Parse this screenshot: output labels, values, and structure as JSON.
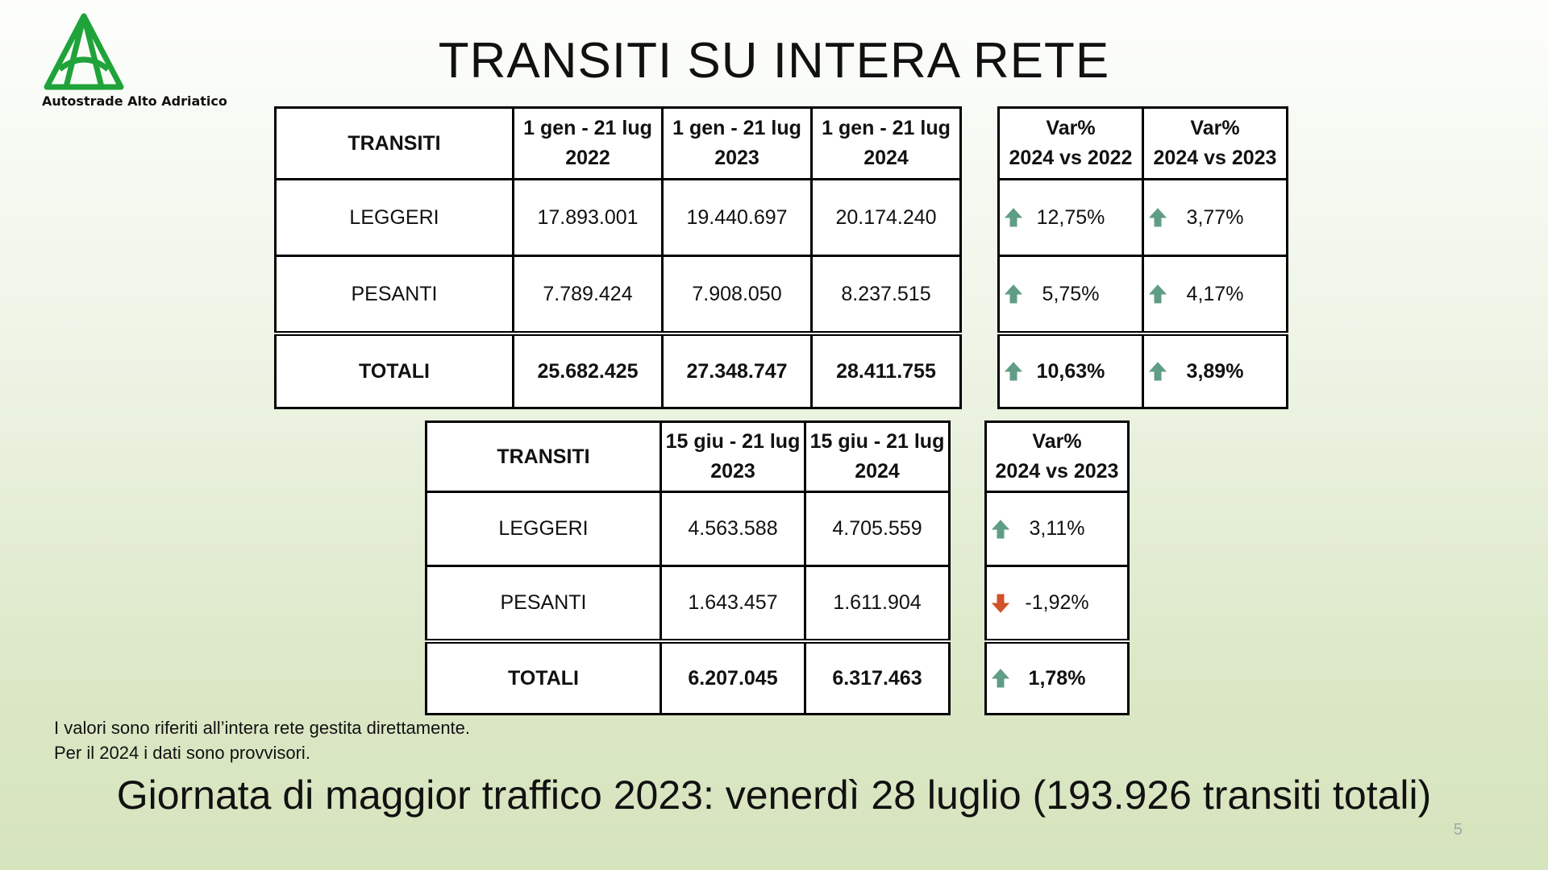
{
  "logo": {
    "text": "Autostrade Alto Adriatico",
    "color": "#1fa33a"
  },
  "title": "TRANSITI SU INTERA RETE",
  "colors": {
    "up_arrow": "#5f9e85",
    "down_arrow": "#d2522b"
  },
  "table1": {
    "headers": [
      "TRANSITI",
      "1 gen - 21 lug",
      "2022",
      "1 gen - 21 lug",
      "2023",
      "1 gen - 21 lug",
      "2024",
      "Var%",
      "2024 vs 2022",
      "Var%",
      "2024 vs 2023"
    ],
    "rows": [
      {
        "label": "LEGGERI",
        "v1": "17.893.001",
        "v2": "19.440.697",
        "v3": "20.174.240",
        "var1": "12,75%",
        "var1_dir": "up",
        "var2": "3,77%",
        "var2_dir": "up"
      },
      {
        "label": "PESANTI",
        "v1": "7.789.424",
        "v2": "7.908.050",
        "v3": "8.237.515",
        "var1": "5,75%",
        "var1_dir": "up",
        "var2": "4,17%",
        "var2_dir": "up"
      },
      {
        "label": "TOTALI",
        "v1": "25.682.425",
        "v2": "27.348.747",
        "v3": "28.411.755",
        "var1": "10,63%",
        "var1_dir": "up",
        "var2": "3,89%",
        "var2_dir": "up"
      }
    ]
  },
  "table2": {
    "headers": [
      "TRANSITI",
      "15 giu - 21 lug",
      "2023",
      "15 giu - 21 lug",
      "2024",
      "Var%",
      "2024 vs 2023"
    ],
    "rows": [
      {
        "label": "LEGGERI",
        "v1": "4.563.588",
        "v2": "4.705.559",
        "var": "3,11%",
        "var_dir": "up"
      },
      {
        "label": "PESANTI",
        "v1": "1.643.457",
        "v2": "1.611.904",
        "var": "-1,92%",
        "var_dir": "down"
      },
      {
        "label": "TOTALI",
        "v1": "6.207.045",
        "v2": "6.317.463",
        "var": "1,78%",
        "var_dir": "up"
      }
    ]
  },
  "notes": [
    "I valori sono riferiti all’intera rete gestita direttamente.",
    "Per il 2024 i dati sono provvisori."
  ],
  "footer": "Giornata di maggior traffico 2023: venerdì 28 luglio (193.926 transiti totali)",
  "page_number": "5"
}
